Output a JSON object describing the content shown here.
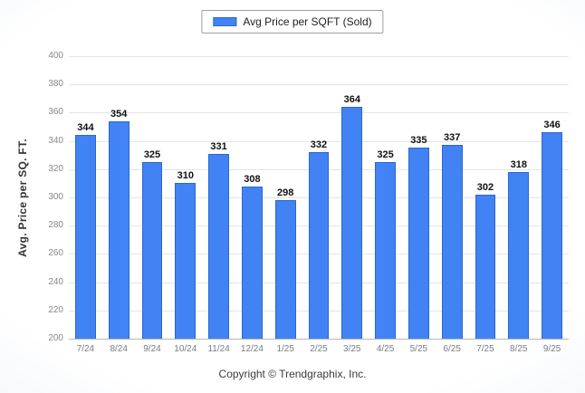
{
  "legend": {
    "label": "Avg Price per SQFT (Sold)",
    "swatch_color": "#4183f4"
  },
  "footer": {
    "copyright": "Copyright © Trendgraphix, Inc."
  },
  "chart_data": {
    "type": "bar",
    "title": "Avg Price per SQFT (Sold)",
    "xlabel": "",
    "ylabel": "Avg. Price per SQ. FT.",
    "categories": [
      "7/24",
      "8/24",
      "9/24",
      "10/24",
      "11/24",
      "12/24",
      "1/25",
      "2/25",
      "3/25",
      "4/25",
      "5/25",
      "6/25",
      "7/25",
      "8/25",
      "9/25"
    ],
    "values": [
      344,
      354,
      325,
      310,
      331,
      308,
      298,
      332,
      364,
      325,
      335,
      337,
      302,
      318,
      346
    ],
    "ylim": [
      200,
      400
    ],
    "ytick_step": 20,
    "grid": true,
    "legend_position": "top-center",
    "bar_color": "#4183f4"
  }
}
